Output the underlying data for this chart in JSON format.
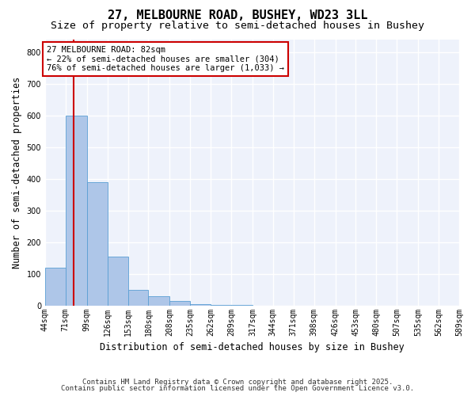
{
  "title": "27, MELBOURNE ROAD, BUSHEY, WD23 3LL",
  "subtitle": "Size of property relative to semi-detached houses in Bushey",
  "xlabel": "Distribution of semi-detached houses by size in Bushey",
  "ylabel": "Number of semi-detached properties",
  "bin_edges": [
    44,
    71,
    99,
    126,
    153,
    180,
    208,
    235,
    262,
    289,
    317,
    344,
    371,
    398,
    426,
    453,
    480,
    507,
    535,
    562,
    589
  ],
  "bar_heights": [
    120,
    600,
    390,
    155,
    50,
    30,
    15,
    5,
    2,
    1,
    0,
    0,
    0,
    0,
    0,
    0,
    0,
    0,
    0,
    0
  ],
  "bar_color": "#aec6e8",
  "bar_edge_color": "#5a9fd4",
  "property_size": 82,
  "property_line_color": "#cc0000",
  "annotation_text": "27 MELBOURNE ROAD: 82sqm\n← 22% of semi-detached houses are smaller (304)\n76% of semi-detached houses are larger (1,033) →",
  "annotation_box_color": "#ffffff",
  "annotation_box_edge_color": "#cc0000",
  "ylim": [
    0,
    840
  ],
  "yticks": [
    0,
    100,
    200,
    300,
    400,
    500,
    600,
    700,
    800
  ],
  "background_color": "#eef2fb",
  "grid_color": "#ffffff",
  "footer_line1": "Contains HM Land Registry data © Crown copyright and database right 2025.",
  "footer_line2": "Contains public sector information licensed under the Open Government Licence v3.0.",
  "title_fontsize": 11,
  "subtitle_fontsize": 9.5,
  "axis_label_fontsize": 8.5,
  "tick_fontsize": 7,
  "annotation_fontsize": 7.5,
  "footer_fontsize": 6.5
}
